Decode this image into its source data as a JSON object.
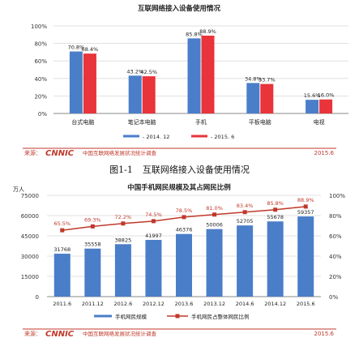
{
  "charts": [
    {
      "type": "bar",
      "title": "互联网络接入设备使用情况",
      "categories": [
        "台式电脑",
        "笔记本电脑",
        "手机",
        "平板电脑",
        "电视"
      ],
      "ylim": [
        0,
        100
      ],
      "y_ticks": [
        "0%",
        "20%",
        "40%",
        "60%",
        "80%",
        "100%"
      ],
      "series": [
        {
          "name": "2014. 12",
          "color": "#4a7ec9",
          "values": [
            70.8,
            43.2,
            85.8,
            34.8,
            15.6
          ],
          "labels": [
            "70.8%",
            "43.2%",
            "85.8%",
            "34.8%",
            "15.6%"
          ]
        },
        {
          "name": "2015. 6",
          "color": "#e8343a",
          "values": [
            68.4,
            42.5,
            88.9,
            33.7,
            16.0
          ],
          "labels": [
            "68.4%",
            "42.5%",
            "88.9%",
            "33.7%",
            "16.0%"
          ]
        }
      ],
      "grid": true,
      "legend": "bottom"
    },
    {
      "type": "bar+line",
      "title": "中国手机网民规模及其占网民比例",
      "y_left_label": "万人",
      "categories": [
        "2011.6",
        "2011.12",
        "2012.6",
        "2012.12",
        "2013.6",
        "2013.12",
        "2014.6",
        "2014.12",
        "2015.6"
      ],
      "ylim_left": [
        0,
        75000
      ],
      "y_left_ticks": [
        "0",
        "15000",
        "30000",
        "45000",
        "60000",
        "75000"
      ],
      "ylim_right": [
        0,
        100
      ],
      "y_right_ticks": [
        "0%",
        "20%",
        "40%",
        "60%",
        "80%",
        "100%"
      ],
      "bar_series": {
        "name": "手机网民规模",
        "color": "#4a7ec9",
        "values": [
          31768,
          35558,
          38825,
          41997,
          46376,
          50006,
          52705,
          55678,
          59357
        ]
      },
      "line_series": {
        "name": "手机网民占整体网民比例",
        "color": "#c0392b",
        "values": [
          65.5,
          69.3,
          72.2,
          74.5,
          78.5,
          81.0,
          83.4,
          85.8,
          88.9
        ],
        "labels": [
          "65.5%",
          "69.3%",
          "72.2%",
          "74.5%",
          "78.5%",
          "81.0%",
          "83.4%",
          "85.8%",
          "88.9%"
        ]
      },
      "legend": "bottom"
    }
  ],
  "caption": {
    "figure": "图1-1",
    "text": "互联网络接入设备使用情况"
  },
  "source": {
    "label": "来源：",
    "brand": "CNNIC",
    "org": "中国互联网络发展状况统计调查",
    "date": "2015.6"
  },
  "palette": {
    "footer_line": "#c0392b",
    "grid": "#d9d9d9"
  }
}
